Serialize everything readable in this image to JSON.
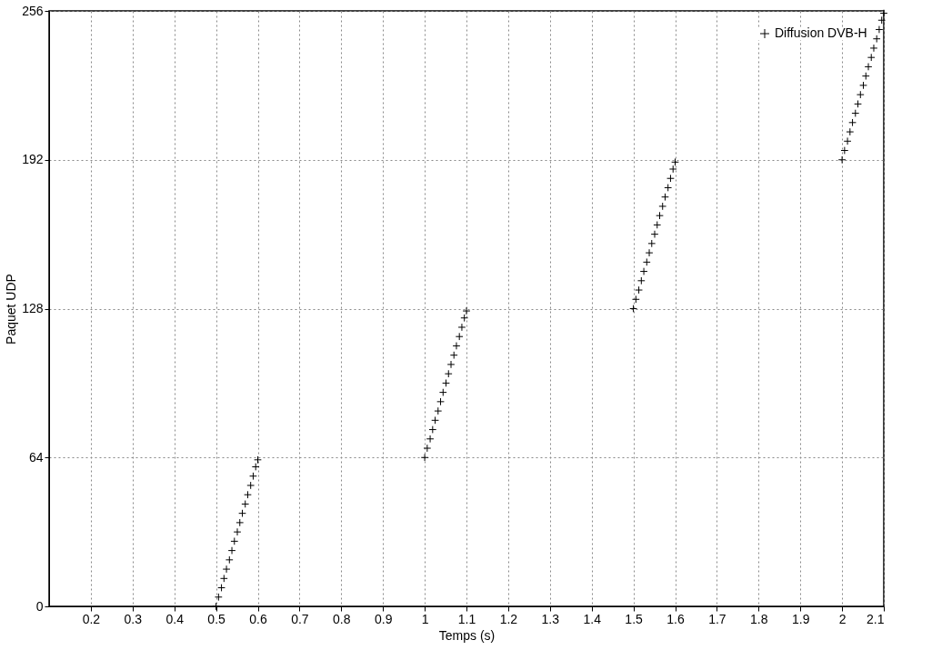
{
  "chart_data": {
    "type": "scatter",
    "xlabel": "Temps (s)",
    "ylabel": "Paquet UDP",
    "xlim": [
      0.1,
      2.1
    ],
    "xticks": [
      0.2,
      0.3,
      0.4,
      0.5,
      0.6,
      0.7,
      0.8,
      0.9,
      1,
      1.1,
      1.2,
      1.3,
      1.4,
      1.5,
      1.6,
      1.7,
      1.8,
      1.9,
      2,
      2.1
    ],
    "ylim": [
      0,
      256
    ],
    "yticks": [
      0,
      64,
      128,
      192,
      256
    ],
    "grid": true,
    "legend": "top right",
    "marker": "cross",
    "series": [
      {
        "name": "Diffusion DVB-H",
        "color": "#000000",
        "x": [
          0.5,
          0.506,
          0.513,
          0.519,
          0.525,
          0.532,
          0.538,
          0.544,
          0.551,
          0.557,
          0.563,
          0.57,
          0.576,
          0.583,
          0.589,
          0.595,
          0.6,
          1.0,
          1.006,
          1.013,
          1.019,
          1.025,
          1.032,
          1.038,
          1.044,
          1.051,
          1.057,
          1.063,
          1.07,
          1.076,
          1.083,
          1.089,
          1.095,
          1.1,
          1.5,
          1.506,
          1.513,
          1.519,
          1.525,
          1.532,
          1.538,
          1.544,
          1.551,
          1.557,
          1.563,
          1.57,
          1.576,
          1.583,
          1.589,
          1.595,
          1.6,
          2.0,
          2.006,
          2.013,
          2.019,
          2.025,
          2.032,
          2.038,
          2.044,
          2.051,
          2.057,
          2.063,
          2.07,
          2.076,
          2.083,
          2.089,
          2.095,
          2.1
        ],
        "values": [
          0,
          4,
          8,
          12,
          16,
          20,
          24,
          28,
          32,
          36,
          40,
          44,
          48,
          52,
          56,
          60,
          63,
          64,
          68,
          72,
          76,
          80,
          84,
          88,
          92,
          96,
          100,
          104,
          108,
          112,
          116,
          120,
          124,
          127,
          128,
          132,
          136,
          140,
          144,
          148,
          152,
          156,
          160,
          164,
          168,
          172,
          176,
          180,
          184,
          188,
          191,
          192,
          196,
          200,
          204,
          208,
          212,
          216,
          220,
          224,
          228,
          232,
          236,
          240,
          244,
          248,
          252,
          255
        ]
      }
    ]
  }
}
